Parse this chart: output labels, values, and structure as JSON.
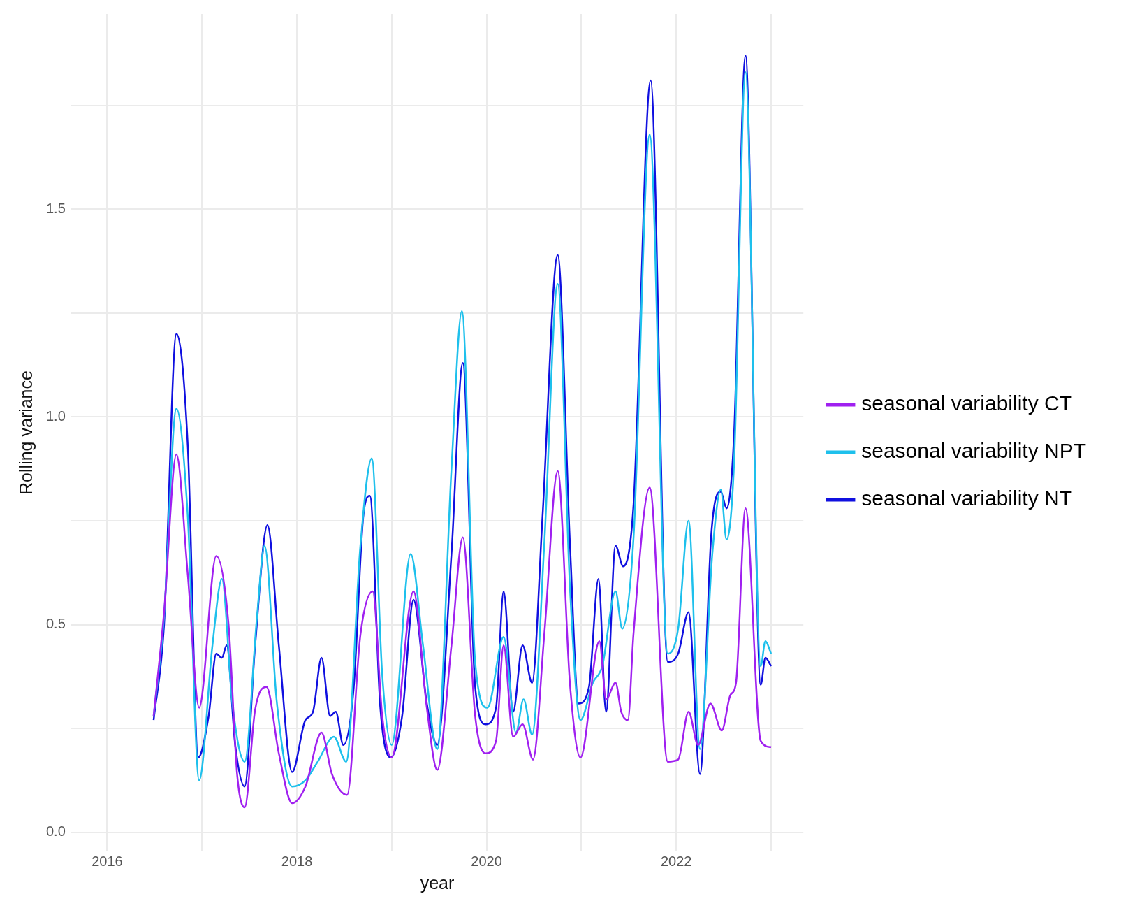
{
  "chart_data": {
    "type": "line",
    "xlabel": "year",
    "ylabel": "Rolling variance",
    "xlim": [
      2015.62,
      2023.34
    ],
    "ylim": [
      -0.046,
      1.97
    ],
    "xticks": [
      2016,
      {
        "value": 2017,
        "label": null
      },
      2018,
      {
        "value": 2019,
        "label": null
      },
      2020,
      {
        "value": 2021,
        "label": null
      },
      2022,
      {
        "value": 2023,
        "label": null
      }
    ],
    "yticks": [
      {
        "value": 0,
        "label": "0.0"
      },
      {
        "value": 0.25,
        "label": null
      },
      {
        "value": 0.5,
        "label": "0.5"
      },
      {
        "value": 0.75,
        "label": null
      },
      {
        "value": 1,
        "label": "1.0"
      },
      {
        "value": 1.25,
        "label": null
      },
      {
        "value": 1.5,
        "label": "1.5"
      },
      {
        "value": 1.75,
        "label": null
      }
    ],
    "grid": true,
    "legend": "right",
    "marker": "none",
    "line_style": "solid",
    "series": [
      {
        "name": "seasonal variability CT",
        "color": "#a020f0",
        "x": [
          2016.49,
          2016.6,
          2016.73,
          2016.85,
          2016.97,
          2017.15,
          2017.28,
          2017.37,
          2017.45,
          2017.56,
          2017.68,
          2017.81,
          2017.95,
          2018.09,
          2018.26,
          2018.37,
          2018.53,
          2018.67,
          2018.8,
          2018.9,
          2019,
          2019.23,
          2019.37,
          2019.48,
          2019.63,
          2019.75,
          2019.88,
          2019.99,
          2020.1,
          2020.18,
          2020.28,
          2020.38,
          2020.49,
          2020.61,
          2020.75,
          2020.88,
          2020.99,
          2021.19,
          2021.26,
          2021.36,
          2021.42,
          2021.49,
          2021.55,
          2021.72,
          2021.91,
          2022.02,
          2022.13,
          2022.23,
          2022.36,
          2022.48,
          2022.57,
          2022.63,
          2022.73,
          2022.89,
          2023
        ],
        "values": [
          0.28,
          0.53,
          0.91,
          0.62,
          0.3,
          0.665,
          0.5,
          0.14,
          0.06,
          0.295,
          0.35,
          0.19,
          0.07,
          0.11,
          0.24,
          0.14,
          0.09,
          0.475,
          0.58,
          0.28,
          0.18,
          0.58,
          0.3,
          0.15,
          0.45,
          0.71,
          0.28,
          0.19,
          0.22,
          0.45,
          0.23,
          0.26,
          0.175,
          0.48,
          0.87,
          0.355,
          0.18,
          0.46,
          0.32,
          0.36,
          0.29,
          0.27,
          0.48,
          0.83,
          0.17,
          0.175,
          0.29,
          0.21,
          0.31,
          0.245,
          0.33,
          0.36,
          0.78,
          0.22,
          0.205
        ]
      },
      {
        "name": "seasonal variability NPT",
        "color": "#1ec0ec",
        "x": [
          2016.49,
          2016.6,
          2016.73,
          2016.85,
          2016.97,
          2017.11,
          2017.21,
          2017.32,
          2017.45,
          2017.58,
          2017.66,
          2017.79,
          2017.95,
          2018.09,
          2018.22,
          2018.39,
          2018.52,
          2018.67,
          2018.79,
          2018.9,
          2019,
          2019.2,
          2019.33,
          2019.48,
          2019.63,
          2019.74,
          2019.88,
          2020.01,
          2020.18,
          2020.31,
          2020.39,
          2020.48,
          2020.61,
          2020.75,
          2020.88,
          2020.99,
          2021.12,
          2021.22,
          2021.36,
          2021.43,
          2021.55,
          2021.72,
          2021.91,
          2022.02,
          2022.13,
          2022.25,
          2022.38,
          2022.47,
          2022.53,
          2022.61,
          2022.73,
          2022.89,
          2022.94,
          2023
        ],
        "values": [
          0.28,
          0.52,
          1.02,
          0.76,
          0.125,
          0.45,
          0.61,
          0.31,
          0.17,
          0.52,
          0.69,
          0.31,
          0.11,
          0.125,
          0.17,
          0.23,
          0.17,
          0.69,
          0.9,
          0.38,
          0.21,
          0.67,
          0.45,
          0.2,
          0.875,
          1.255,
          0.41,
          0.3,
          0.47,
          0.24,
          0.32,
          0.235,
          0.7,
          1.32,
          0.585,
          0.27,
          0.36,
          0.4,
          0.58,
          0.49,
          0.71,
          1.68,
          0.43,
          0.49,
          0.75,
          0.2,
          0.67,
          0.825,
          0.705,
          0.89,
          1.83,
          0.4,
          0.46,
          0.43
        ]
      },
      {
        "name": "seasonal variability NT",
        "color": "#1010e0",
        "x": [
          2016.49,
          2016.6,
          2016.73,
          2016.85,
          2016.96,
          2017.07,
          2017.15,
          2017.21,
          2017.26,
          2017.35,
          2017.45,
          2017.56,
          2017.69,
          2017.81,
          2017.95,
          2018.09,
          2018.17,
          2018.26,
          2018.35,
          2018.41,
          2018.49,
          2018.6,
          2018.7,
          2018.77,
          2018.88,
          2018.99,
          2019.11,
          2019.23,
          2019.37,
          2019.48,
          2019.63,
          2019.75,
          2019.88,
          2019.99,
          2020.1,
          2020.18,
          2020.28,
          2020.38,
          2020.48,
          2020.59,
          2020.75,
          2020.88,
          2020.97,
          2021.08,
          2021.18,
          2021.26,
          2021.36,
          2021.44,
          2021.55,
          2021.73,
          2021.91,
          2022.02,
          2022.13,
          2022.25,
          2022.37,
          2022.47,
          2022.53,
          2022.61,
          2022.73,
          2022.89,
          2022.94,
          2023
        ],
        "values": [
          0.27,
          0.5,
          1.2,
          0.93,
          0.18,
          0.28,
          0.43,
          0.42,
          0.45,
          0.21,
          0.11,
          0.45,
          0.74,
          0.45,
          0.145,
          0.27,
          0.29,
          0.42,
          0.28,
          0.29,
          0.21,
          0.35,
          0.76,
          0.81,
          0.3,
          0.18,
          0.28,
          0.56,
          0.31,
          0.21,
          0.67,
          1.13,
          0.35,
          0.26,
          0.3,
          0.58,
          0.29,
          0.45,
          0.36,
          0.76,
          1.39,
          0.69,
          0.31,
          0.35,
          0.61,
          0.29,
          0.69,
          0.64,
          0.79,
          1.81,
          0.41,
          0.43,
          0.53,
          0.14,
          0.72,
          0.82,
          0.78,
          0.96,
          1.87,
          0.355,
          0.42,
          0.4
        ]
      }
    ]
  }
}
